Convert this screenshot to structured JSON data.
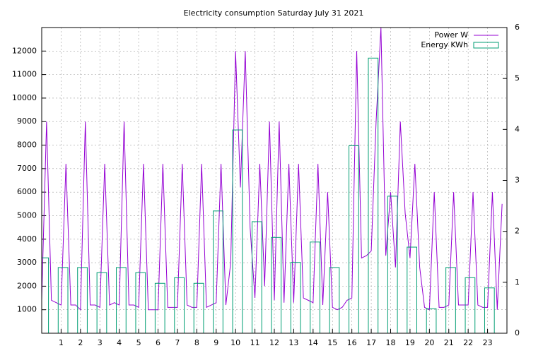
{
  "chart_data": {
    "type": "line",
    "title": "Electricity consumption Saturday July 31 2021",
    "xlim": [
      0,
      24
    ],
    "xticks": [
      1,
      2,
      3,
      4,
      5,
      6,
      7,
      8,
      9,
      10,
      11,
      12,
      13,
      14,
      15,
      16,
      17,
      18,
      19,
      20,
      21,
      22,
      23
    ],
    "ylim": [
      0,
      13000
    ],
    "yticks": [
      1000,
      2000,
      3000,
      4000,
      5000,
      6000,
      7000,
      8000,
      9000,
      10000,
      11000,
      12000
    ],
    "y2lim": [
      0,
      6
    ],
    "y2ticks": [
      0,
      1,
      2,
      3,
      4,
      5,
      6
    ],
    "grid": true,
    "legend": "top-right",
    "series": [
      {
        "name": "Power W",
        "type": "line",
        "color": "#9400d3",
        "x": [
          0,
          0.25,
          0.5,
          0.75,
          1,
          1.25,
          1.5,
          1.75,
          2,
          2.25,
          2.5,
          2.75,
          3,
          3.25,
          3.5,
          3.75,
          4,
          4.25,
          4.5,
          4.75,
          5,
          5.25,
          5.5,
          5.75,
          6,
          6.25,
          6.5,
          6.75,
          7,
          7.25,
          7.5,
          7.75,
          8,
          8.25,
          8.5,
          8.75,
          9,
          9.25,
          9.5,
          9.75,
          10,
          10.25,
          10.5,
          10.75,
          11,
          11.25,
          11.5,
          11.75,
          12,
          12.25,
          12.5,
          12.75,
          13,
          13.25,
          13.5,
          13.75,
          14,
          14.25,
          14.5,
          14.75,
          15,
          15.25,
          15.5,
          15.75,
          16,
          16.25,
          16.5,
          16.75,
          17,
          17.25,
          17.5,
          17.75,
          18,
          18.25,
          18.5,
          18.75,
          19,
          19.25,
          19.5,
          19.75,
          20,
          20.25,
          20.5,
          20.75,
          21,
          21.25,
          21.5,
          21.75,
          22,
          22.25,
          22.5,
          22.75,
          23,
          23.25,
          23.5,
          23.75
        ],
        "values": [
          1400,
          9000,
          1400,
          1300,
          1200,
          7200,
          1200,
          1200,
          1000,
          9000,
          1200,
          1200,
          1100,
          7200,
          1200,
          1300,
          1200,
          9000,
          1200,
          1200,
          1100,
          7200,
          1000,
          1000,
          1000,
          7200,
          1100,
          1100,
          1100,
          7200,
          1200,
          1100,
          1100,
          7200,
          1100,
          1200,
          1300,
          7200,
          1200,
          3000,
          12000,
          6200,
          12000,
          4500,
          1500,
          7200,
          2000,
          9000,
          1400,
          9000,
          1300,
          7200,
          1300,
          7200,
          1500,
          1400,
          1300,
          7200,
          1200,
          6000,
          1100,
          1000,
          1100,
          1400,
          1500,
          12000,
          3200,
          3300,
          3500,
          9000,
          13000,
          3300,
          6000,
          2800,
          9000,
          5100,
          3200,
          7200,
          2800,
          1100,
          1000,
          6000,
          1100,
          1100,
          1200,
          6000,
          1200,
          1200,
          1200,
          6000,
          1200,
          1100,
          1100,
          6000,
          1000,
          5500
        ]
      },
      {
        "name": "Energy KWh",
        "type": "bar",
        "color": "#009e73",
        "axis": "y2",
        "x": [
          0,
          1,
          2,
          3,
          4,
          5,
          6,
          7,
          8,
          9,
          10,
          11,
          12,
          13,
          14,
          15,
          16,
          17,
          18,
          19,
          20,
          21,
          22,
          23
        ],
        "values": [
          1.48,
          1.29,
          1.29,
          1.19,
          1.29,
          1.19,
          0.98,
          1.09,
          0.98,
          2.4,
          3.99,
          2.19,
          1.88,
          1.39,
          1.79,
          1.29,
          3.68,
          5.4,
          2.69,
          1.69,
          0.48,
          1.29,
          1.09,
          0.89
        ]
      }
    ]
  }
}
